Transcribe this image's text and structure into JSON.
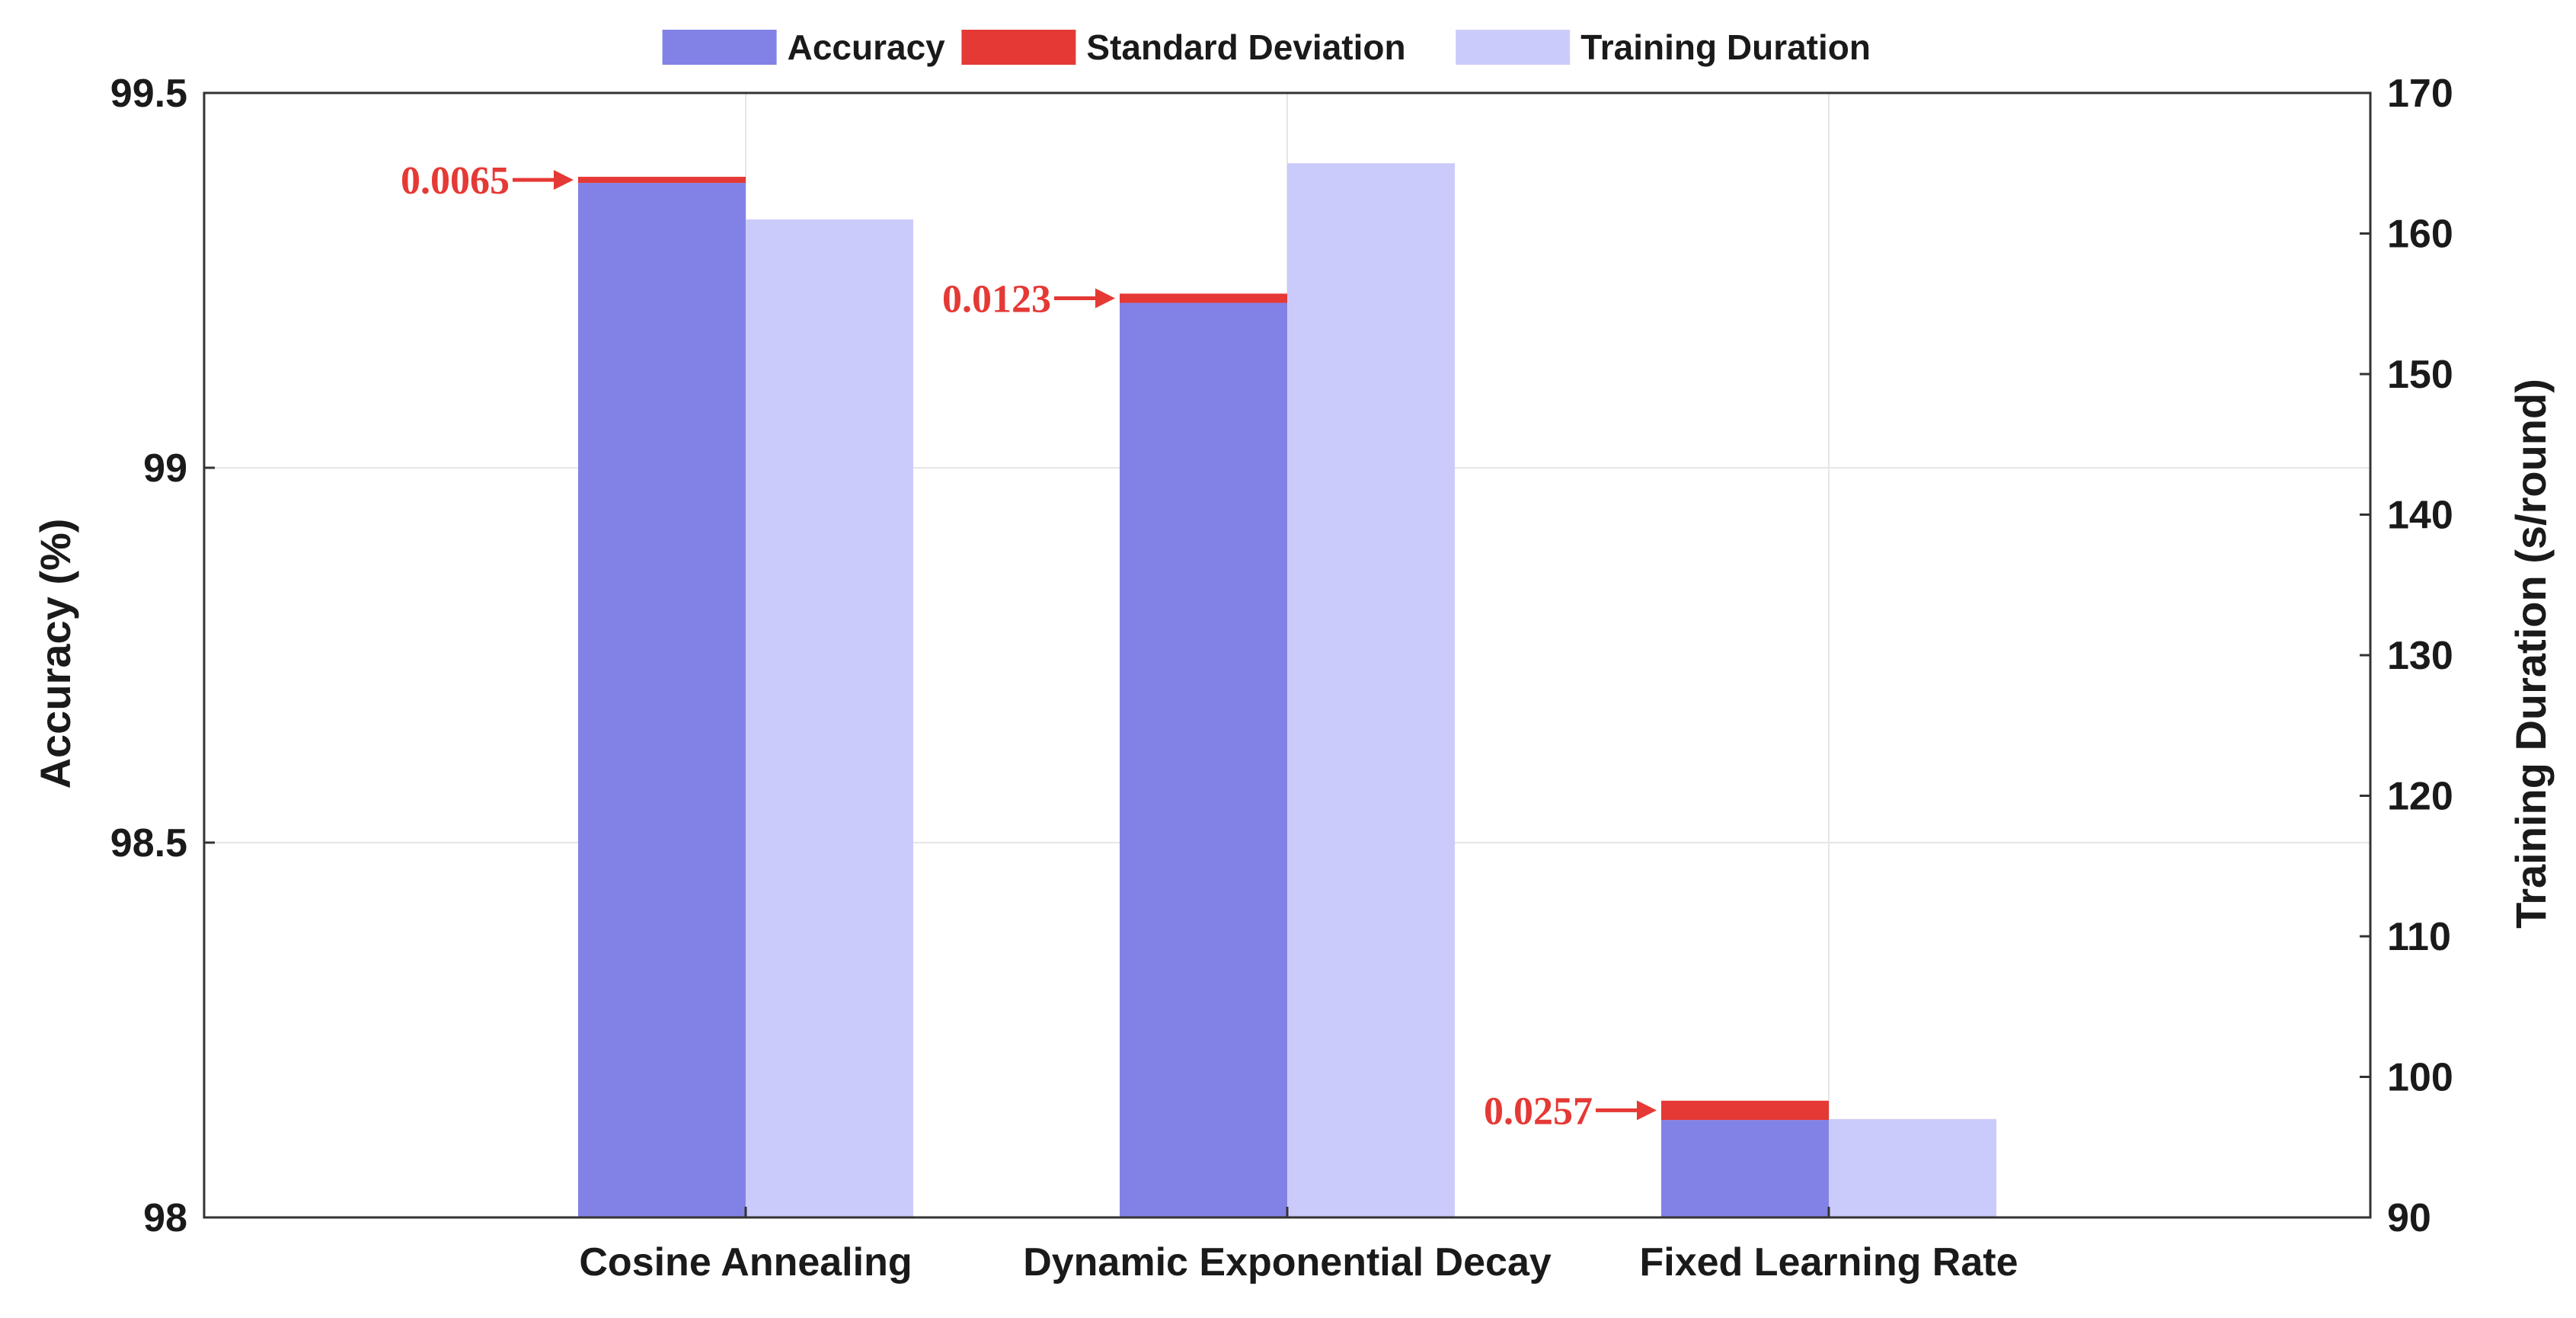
{
  "chart_data": {
    "type": "bar",
    "categories": [
      "Cosine Annealing",
      "Dynamic Exponential Decay",
      "Fixed Learning Rate"
    ],
    "series": [
      {
        "name": "Accuracy",
        "axis": "left",
        "values": [
          99.38,
          99.22,
          98.13
        ]
      },
      {
        "name": "Standard Deviation",
        "axis": "left",
        "stacked_on": "Accuracy",
        "values": [
          0.0065,
          0.0123,
          0.0257
        ]
      },
      {
        "name": "Training Duration",
        "axis": "right",
        "values": [
          161,
          165,
          97
        ]
      }
    ],
    "annotations": [
      "0.0065",
      "0.0123",
      "0.0257"
    ],
    "ylabel": "Accuracy (%)",
    "y2label": "Training Duration (s/round)",
    "ylim": [
      98,
      99.5
    ],
    "y2lim": [
      90,
      170
    ],
    "yticks": [
      "98",
      "98.5",
      "99",
      "99.5"
    ],
    "y2ticks": [
      "90",
      "100",
      "110",
      "120",
      "130",
      "140",
      "150",
      "160",
      "170"
    ],
    "grid": true,
    "legend_position": "top-center",
    "colors": {
      "accuracy": "#8282e6",
      "std": "#e53935",
      "duration": "#cbcbfb",
      "annotation": "#e53935",
      "grid": "#e6e6e6",
      "axis": "#333333"
    }
  }
}
